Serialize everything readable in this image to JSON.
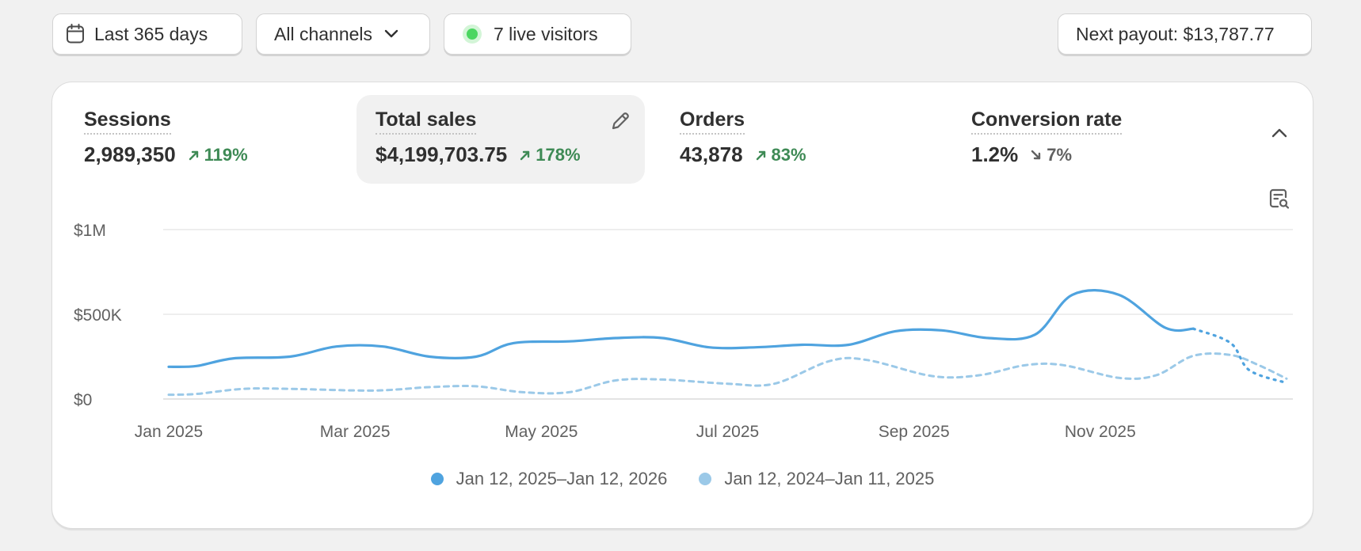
{
  "toolbar": {
    "date_range_label": "Last 365 days",
    "channels_label": "All channels",
    "live_visitors_label": "7 live visitors",
    "payout_label": "Next payout: $13,787.77"
  },
  "metrics": [
    {
      "title": "Sessions",
      "value": "2,989,350",
      "delta": "119%",
      "direction": "up"
    },
    {
      "title": "Total sales",
      "value": "$4,199,703.75",
      "delta": "178%",
      "direction": "up"
    },
    {
      "title": "Orders",
      "value": "43,878",
      "delta": "83%",
      "direction": "up"
    },
    {
      "title": "Conversion rate",
      "value": "1.2%",
      "delta": "7%",
      "direction": "down"
    }
  ],
  "colors": {
    "current": "#4fa3df",
    "previous": "#9bc9e8",
    "positive": "#3e8a55",
    "neutral": "#616161"
  },
  "icons": [
    "calendar-icon",
    "chevron-down-icon",
    "edit-icon",
    "chevron-up-icon",
    "analyze-icon",
    "trend-up-icon",
    "trend-down-icon"
  ],
  "chart_data": {
    "type": "line",
    "y_ticks": [
      {
        "label": "$1M",
        "value": 1000000
      },
      {
        "label": "$500K",
        "value": 500000
      },
      {
        "label": "$0",
        "value": 0
      }
    ],
    "ylim": [
      0,
      1000000
    ],
    "x_labels": [
      {
        "label": "Jan 2025",
        "t": 0
      },
      {
        "label": "Mar 2025",
        "t": 2
      },
      {
        "label": "May 2025",
        "t": 4
      },
      {
        "label": "Jul 2025",
        "t": 6
      },
      {
        "label": "Sep 2025",
        "t": 8
      },
      {
        "label": "Nov 2025",
        "t": 10
      }
    ],
    "xlim": [
      0,
      12
    ],
    "grid": true,
    "legend_position": "bottom",
    "series": [
      {
        "name": "Jan 12, 2025–Jan 12, 2026",
        "style": "solid",
        "dashed_from": 11,
        "points": [
          [
            0,
            190000
          ],
          [
            0.3,
            195000
          ],
          [
            0.7,
            240000
          ],
          [
            1.3,
            250000
          ],
          [
            1.8,
            310000
          ],
          [
            2.3,
            310000
          ],
          [
            2.8,
            250000
          ],
          [
            3.3,
            250000
          ],
          [
            3.7,
            330000
          ],
          [
            4.3,
            340000
          ],
          [
            4.8,
            360000
          ],
          [
            5.3,
            360000
          ],
          [
            5.8,
            305000
          ],
          [
            6.3,
            305000
          ],
          [
            6.8,
            320000
          ],
          [
            7.3,
            320000
          ],
          [
            7.8,
            400000
          ],
          [
            8.3,
            405000
          ],
          [
            8.8,
            360000
          ],
          [
            9.3,
            380000
          ],
          [
            9.7,
            615000
          ],
          [
            10.2,
            615000
          ],
          [
            10.7,
            420000
          ],
          [
            11.0,
            415000
          ],
          [
            11.4,
            330000
          ],
          [
            11.6,
            170000
          ],
          [
            12.0,
            95000
          ]
        ]
      },
      {
        "name": "Jan 12, 2024–Jan 11, 2025",
        "style": "dashed",
        "points": [
          [
            0,
            25000
          ],
          [
            0.3,
            30000
          ],
          [
            0.8,
            60000
          ],
          [
            1.3,
            60000
          ],
          [
            2.2,
            50000
          ],
          [
            2.8,
            70000
          ],
          [
            3.3,
            75000
          ],
          [
            3.8,
            40000
          ],
          [
            4.3,
            40000
          ],
          [
            4.8,
            110000
          ],
          [
            5.3,
            115000
          ],
          [
            6.0,
            90000
          ],
          [
            6.5,
            90000
          ],
          [
            7.1,
            225000
          ],
          [
            7.5,
            230000
          ],
          [
            8.2,
            135000
          ],
          [
            8.7,
            140000
          ],
          [
            9.2,
            200000
          ],
          [
            9.6,
            200000
          ],
          [
            10.2,
            125000
          ],
          [
            10.6,
            140000
          ],
          [
            11.0,
            255000
          ],
          [
            11.4,
            260000
          ],
          [
            11.7,
            200000
          ],
          [
            12.0,
            120000
          ]
        ]
      }
    ]
  }
}
